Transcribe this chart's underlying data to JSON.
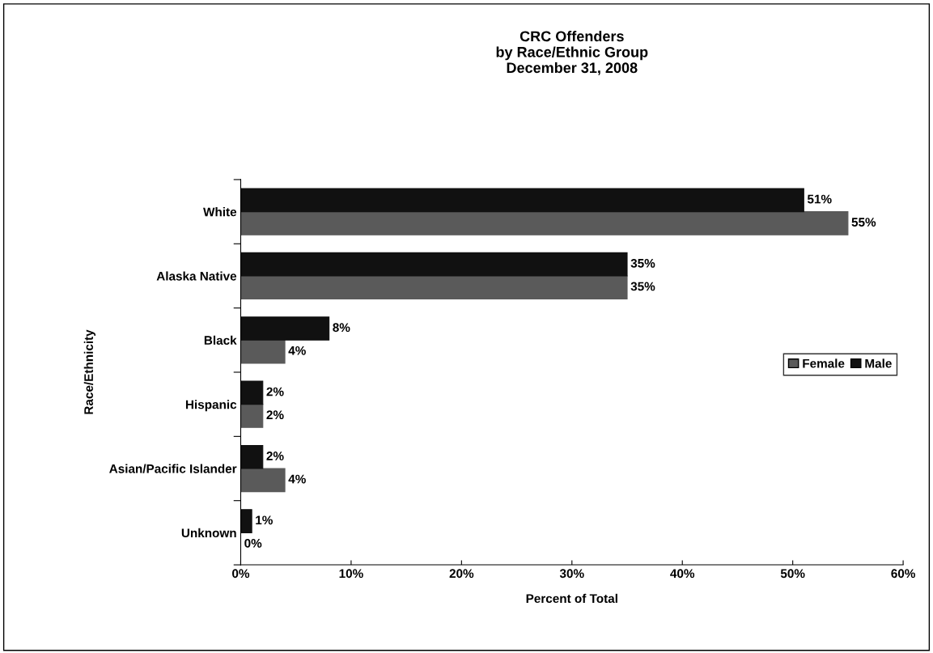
{
  "chart_data": {
    "type": "bar",
    "orientation": "horizontal",
    "title": "CRC Offenders\nby Race/Ethnic Group\nDecember 31, 2008",
    "xlabel": "Percent of Total",
    "ylabel": "Race/Ethnicity",
    "categories": [
      "White",
      "Alaska Native",
      "Black",
      "Hispanic",
      "Asian/Pacific Islander",
      "Unknown"
    ],
    "series": [
      {
        "name": "Female",
        "color": "#5a5a5a",
        "values": [
          55,
          35,
          4,
          2,
          4,
          0
        ],
        "value_labels": [
          "55%",
          "35%",
          "4%",
          "2%",
          "4%",
          "0%"
        ]
      },
      {
        "name": "Male",
        "color": "#111111",
        "values": [
          51,
          35,
          8,
          2,
          2,
          1
        ],
        "value_labels": [
          "51%",
          "35%",
          "8%",
          "2%",
          "2%",
          "1%"
        ]
      }
    ],
    "xlim": [
      0,
      60
    ],
    "xticks": [
      {
        "value": 0,
        "label": "0%"
      },
      {
        "value": 10,
        "label": "10%"
      },
      {
        "value": 20,
        "label": "20%"
      },
      {
        "value": 30,
        "label": "30%"
      },
      {
        "value": 40,
        "label": "40%"
      },
      {
        "value": 50,
        "label": "50%"
      },
      {
        "value": 60,
        "label": "60%"
      }
    ],
    "legend": "right",
    "grid": false
  }
}
